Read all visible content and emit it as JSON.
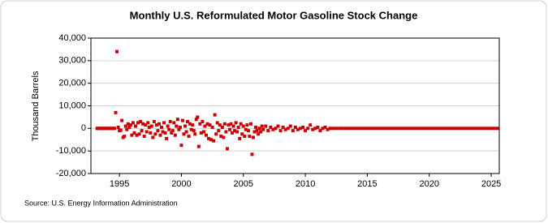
{
  "chart_data": {
    "type": "scatter",
    "title": "Monthly U.S. Reformulated Motor Gasoline Stock Change",
    "y_label": "Thousand Barrels",
    "source": "Source: U.S. Energy Information Administration",
    "color": "#cc0000",
    "grid": true,
    "xlim": [
      1992.7,
      2025.65
    ],
    "ylim": [
      -20000,
      40000
    ],
    "xticks": [
      1995,
      2000,
      2005,
      2010,
      2015,
      2020,
      2025
    ],
    "yticks": [
      {
        "value": -20000,
        "label": "-20,000"
      },
      {
        "value": -10000,
        "label": "-10,000"
      },
      0,
      {
        "value": 10000,
        "label": "10,000"
      },
      {
        "value": 20000,
        "label": "20,000"
      },
      {
        "value": 30000,
        "label": "30,000"
      },
      {
        "value": 40000,
        "label": "40,000"
      }
    ],
    "x": [
      1993.2,
      1993.3,
      1993.4,
      1993.5,
      1993.6,
      1993.7,
      1993.8,
      1993.9,
      1994.0,
      1994.1,
      1994.2,
      1994.3,
      1994.4,
      1994.5,
      1994.6,
      1994.7,
      1994.8,
      1994.9,
      1995.0,
      1995.1,
      1995.2,
      1995.3,
      1995.4,
      1995.5,
      1995.6,
      1995.7,
      1995.8,
      1995.9,
      1996.0,
      1996.1,
      1996.2,
      1996.3,
      1996.4,
      1996.5,
      1996.6,
      1996.7,
      1996.8,
      1996.9,
      1997.0,
      1997.1,
      1997.2,
      1997.3,
      1997.4,
      1997.5,
      1997.6,
      1997.7,
      1997.8,
      1997.9,
      1998.0,
      1998.1,
      1998.2,
      1998.3,
      1998.4,
      1998.5,
      1998.6,
      1998.7,
      1998.8,
      1998.9,
      1999.0,
      1999.1,
      1999.2,
      1999.3,
      1999.4,
      1999.5,
      1999.6,
      1999.7,
      1999.8,
      1999.9,
      2000.0,
      2000.1,
      2000.2,
      2000.3,
      2000.4,
      2000.5,
      2000.6,
      2000.7,
      2000.8,
      2000.9,
      2001.0,
      2001.1,
      2001.2,
      2001.3,
      2001.4,
      2001.5,
      2001.6,
      2001.7,
      2001.8,
      2001.9,
      2002.0,
      2002.1,
      2002.2,
      2002.3,
      2002.4,
      2002.5,
      2002.6,
      2002.7,
      2002.8,
      2002.9,
      2003.0,
      2003.1,
      2003.2,
      2003.3,
      2003.4,
      2003.5,
      2003.6,
      2003.7,
      2003.8,
      2003.9,
      2004.0,
      2004.1,
      2004.2,
      2004.3,
      2004.4,
      2004.5,
      2004.6,
      2004.7,
      2004.8,
      2004.9,
      2005.0,
      2005.1,
      2005.2,
      2005.3,
      2005.4,
      2005.5,
      2005.6,
      2005.7,
      2005.8,
      2005.9,
      2006.0,
      2006.1,
      2006.2,
      2006.3,
      2006.4,
      2006.5,
      2006.6,
      2006.8,
      2007.0,
      2007.2,
      2007.4,
      2007.6,
      2007.8,
      2008.0,
      2008.2,
      2008.4,
      2008.6,
      2008.8,
      2009.0,
      2009.2,
      2009.4,
      2009.6,
      2009.8,
      2010.0,
      2010.2,
      2010.4,
      2010.6,
      2010.8,
      2011.0,
      2011.2,
      2011.4,
      2011.6,
      2011.8,
      2012.0,
      2012.25,
      2012.5,
      2012.75,
      2013,
      2013.25,
      2013.5,
      2013.75,
      2014,
      2014.25,
      2014.5,
      2014.75,
      2015,
      2015.25,
      2015.5,
      2015.75,
      2016,
      2016.25,
      2016.5,
      2016.75,
      2017,
      2017.25,
      2017.5,
      2017.75,
      2018,
      2018.25,
      2018.5,
      2018.75,
      2019,
      2019.25,
      2019.5,
      2019.75,
      2020,
      2020.25,
      2020.5,
      2020.75,
      2021,
      2021.25,
      2021.5,
      2021.75,
      2022,
      2022.25,
      2022.5,
      2022.75,
      2023,
      2023.25,
      2023.5,
      2023.75,
      2024,
      2024.25,
      2024.5,
      2024.75,
      2025,
      2025.25,
      2025.5
    ],
    "values": [
      0,
      0,
      0,
      0,
      0,
      0,
      0,
      0,
      0,
      0,
      0,
      0,
      0,
      0,
      0,
      7000,
      34000,
      500,
      -1000,
      -800,
      3500,
      -4000,
      -3500,
      1000,
      -500,
      2000,
      500,
      1500,
      -3000,
      2500,
      -2000,
      1000,
      -3000,
      2500,
      -2500,
      3000,
      -1000,
      2000,
      -3500,
      1500,
      -1500,
      2500,
      500,
      -2000,
      1000,
      -4000,
      3000,
      -2500,
      1500,
      -1000,
      2000,
      -3000,
      500,
      -1500,
      2500,
      -2000,
      -4500,
      1000,
      -500,
      3000,
      -2000,
      -1000,
      2500,
      -3000,
      1000,
      4000,
      -500,
      500,
      -7500,
      3500,
      -2500,
      1000,
      -1500,
      3000,
      -3500,
      2000,
      -500,
      1500,
      -1000,
      -2500,
      4000,
      5000,
      -8000,
      2000,
      -2000,
      3000,
      -1500,
      1000,
      -3000,
      2000,
      -4500,
      1500,
      -5000,
      500,
      -5500,
      6000,
      -2500,
      2500,
      -1000,
      1500,
      -3500,
      500,
      -4000,
      2000,
      -1500,
      -9000,
      1500,
      -500,
      2000,
      -2000,
      1000,
      -1000,
      2500,
      -1500,
      500,
      -4500,
      2000,
      -2500,
      1000,
      -3500,
      -500,
      1500,
      -1000,
      -3500,
      2000,
      -11500,
      -4000,
      -1500,
      500,
      -1000,
      -2500,
      0,
      -1500,
      1000,
      -500,
      1000,
      -1000,
      500,
      -500,
      0,
      1000,
      -1000,
      500,
      -500,
      0,
      1000,
      -1000,
      500,
      -500,
      0,
      500,
      -1000,
      0,
      1500,
      -500,
      0,
      500,
      -1000,
      0,
      500,
      -500,
      0,
      0,
      0,
      0,
      0,
      0,
      0,
      0,
      0,
      0,
      0,
      0,
      0,
      0,
      0,
      0,
      0,
      0,
      0,
      0,
      0,
      0,
      0,
      0,
      0,
      0,
      0,
      0,
      0,
      0,
      0,
      0,
      0,
      0,
      0,
      0,
      0,
      0,
      0,
      0,
      0,
      0,
      0,
      0,
      0,
      0,
      0,
      0,
      0,
      0,
      0,
      0,
      0,
      0,
      0
    ]
  }
}
